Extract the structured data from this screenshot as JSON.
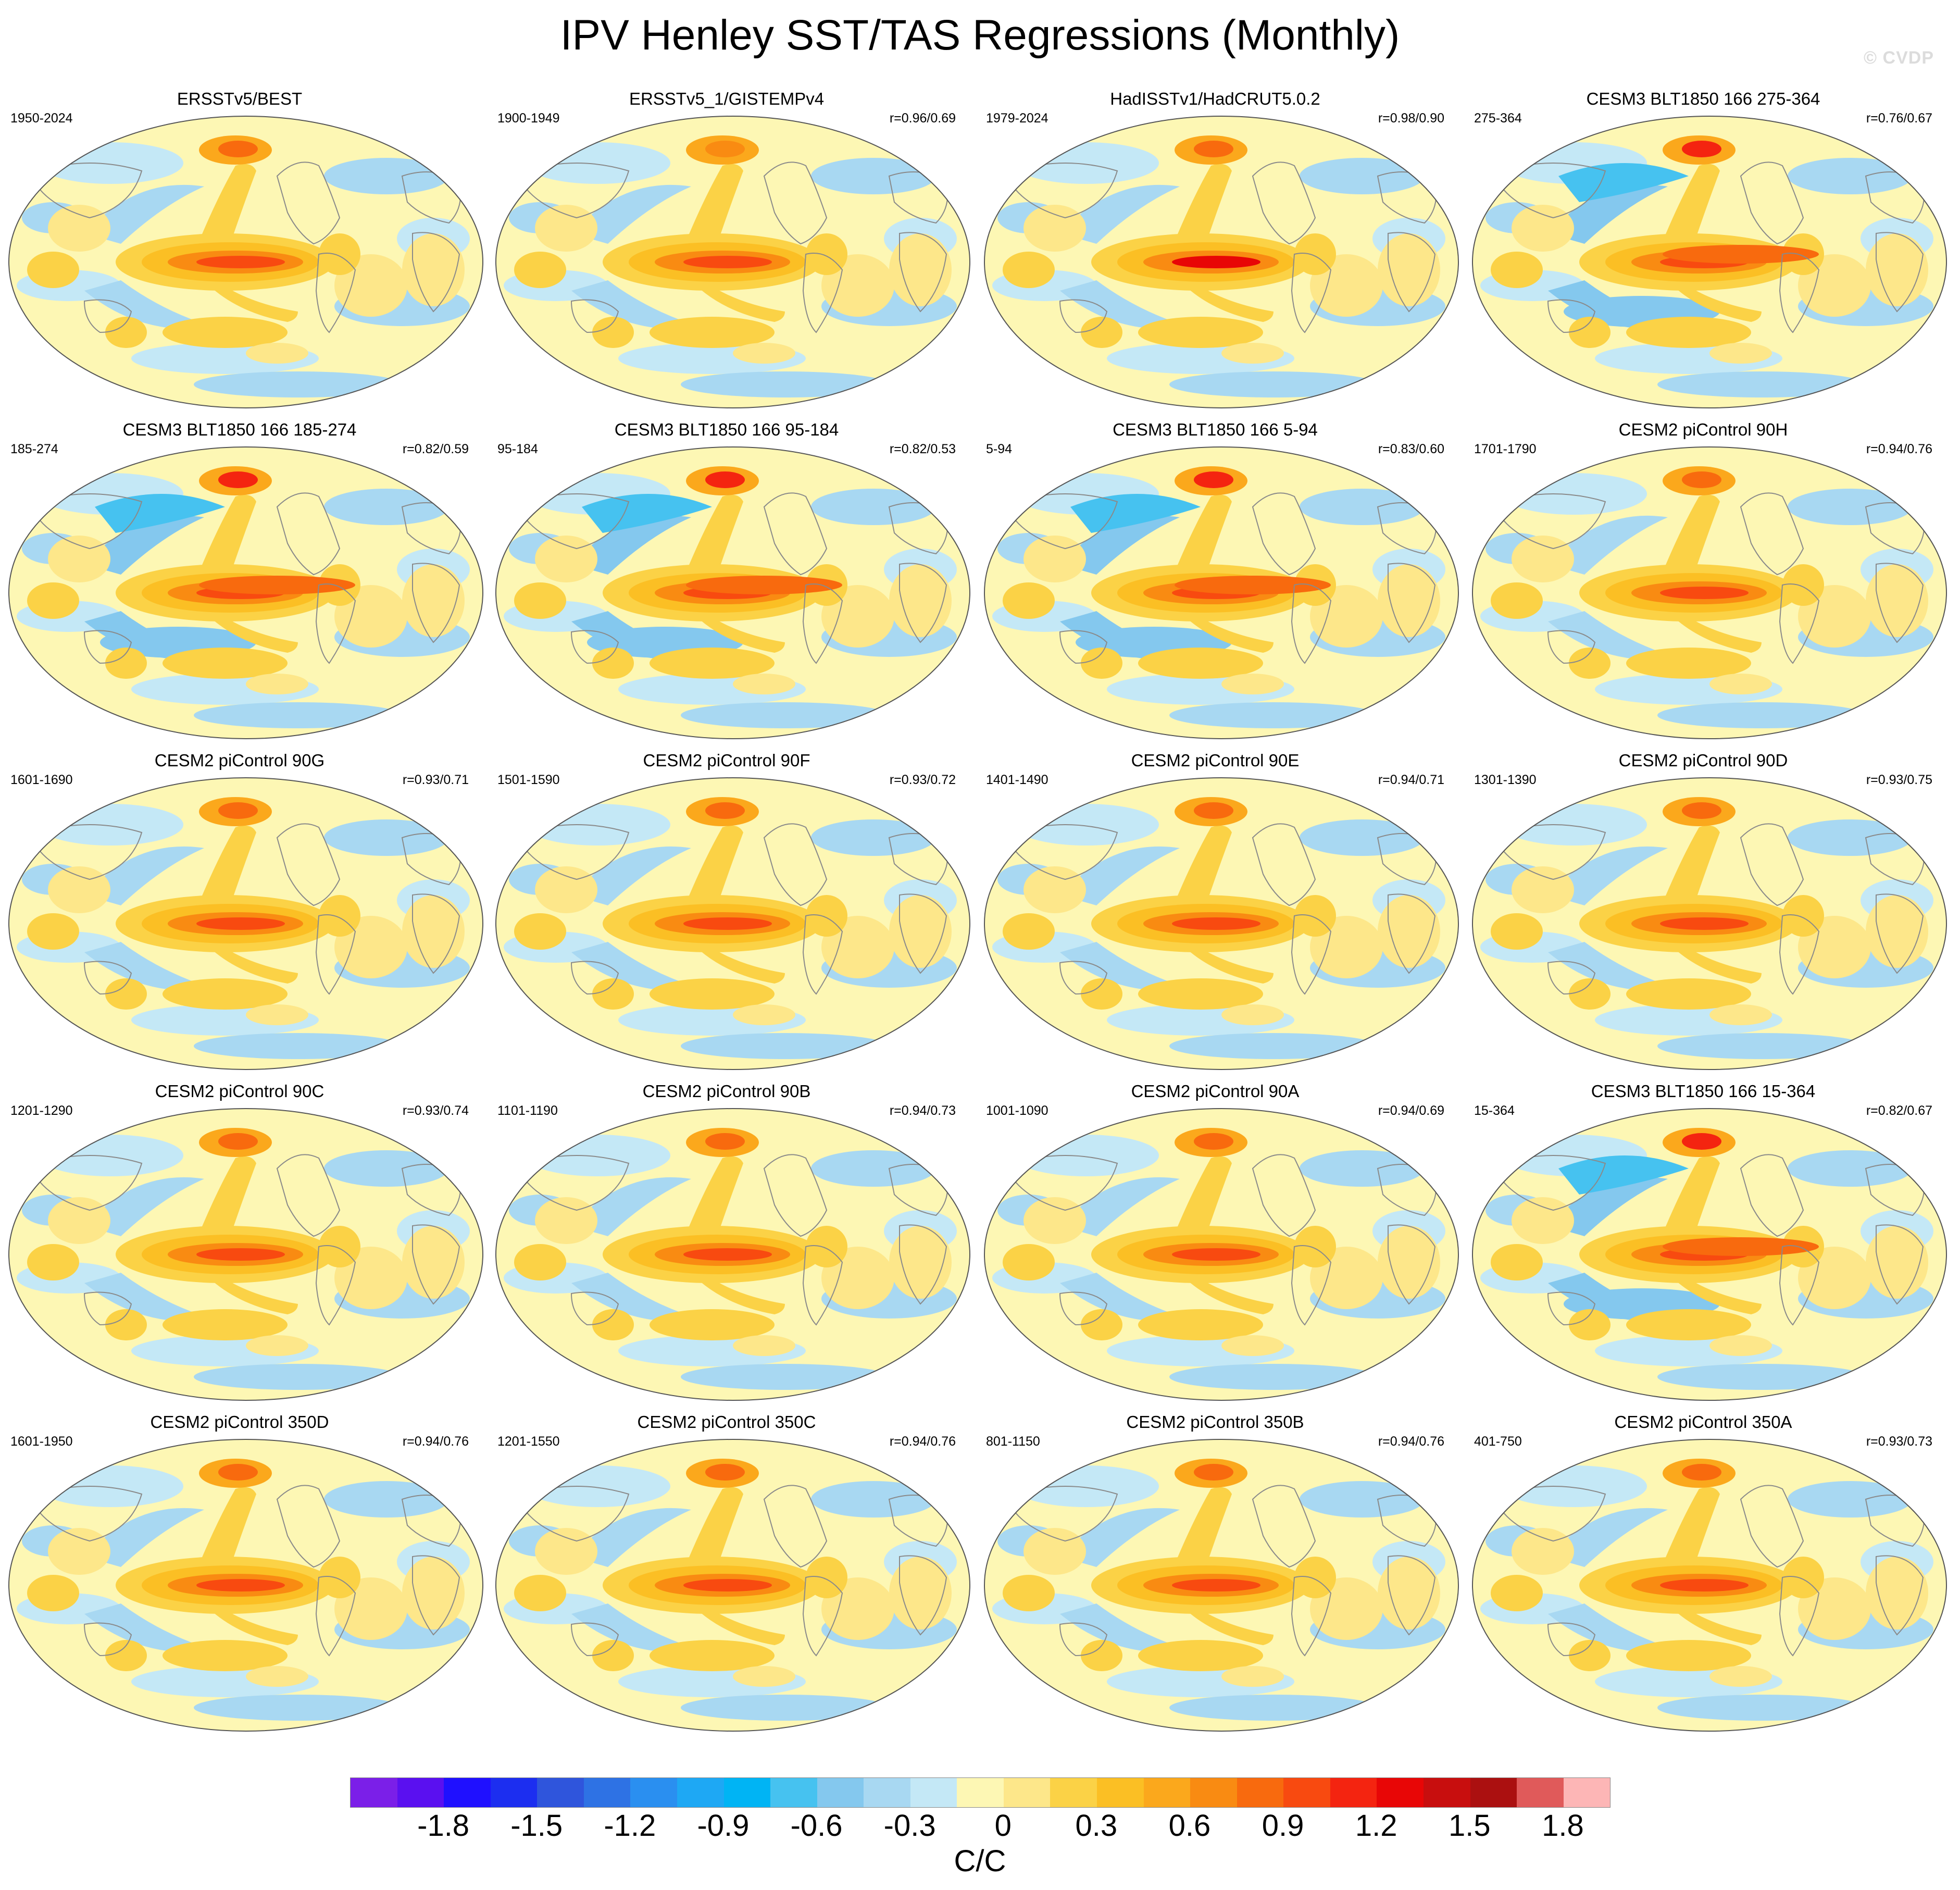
{
  "title": "IPV Henley SST/TAS Regressions (Monthly)",
  "watermark": "© CVDP",
  "colorbar": {
    "unit": "C/C",
    "ticks": [
      "-1.8",
      "-1.5",
      "-1.2",
      "-0.9",
      "-0.6",
      "-0.3",
      "0",
      "0.3",
      "0.6",
      "0.9",
      "1.2",
      "1.5",
      "1.8"
    ],
    "colors": [
      "#7b1fe8",
      "#5a10f0",
      "#1f10ff",
      "#1c2ef0",
      "#2f55dc",
      "#2e72e4",
      "#2a8ff0",
      "#1ea8f4",
      "#00b4f4",
      "#46c2f0",
      "#84c8ee",
      "#a8d8f2",
      "#c4e8f6",
      "#fdf7b4",
      "#fde78a",
      "#fbd246",
      "#fbbf24",
      "#fba81c",
      "#f98b12",
      "#f86a0e",
      "#f84a10",
      "#f42410",
      "#e80606",
      "#c80e0e",
      "#ab1010",
      "#e05a5a",
      "#fdb6b6"
    ]
  },
  "panels": [
    {
      "title": "ERSSTv5/BEST",
      "years": "1950-2024",
      "corr": "",
      "style": "obs"
    },
    {
      "title": "ERSSTv5_1/GISTEMPv4",
      "years": "1900-1949",
      "corr": "r=0.96/0.69",
      "style": "obs2"
    },
    {
      "title": "HadISSTv1/HadCRUT5.0.2",
      "years": "1979-2024",
      "corr": "r=0.98/0.90",
      "style": "obs3"
    },
    {
      "title": "CESM3 BLT1850 166 275-364",
      "years": "275-364",
      "corr": "r=0.76/0.67",
      "style": "cesm3"
    },
    {
      "title": "CESM3 BLT1850 166 185-274",
      "years": "185-274",
      "corr": "r=0.82/0.59",
      "style": "cesm3"
    },
    {
      "title": "CESM3 BLT1850 166 95-184",
      "years": "95-184",
      "corr": "r=0.82/0.53",
      "style": "cesm3"
    },
    {
      "title": "CESM3 BLT1850 166 5-94",
      "years": "5-94",
      "corr": "r=0.83/0.60",
      "style": "cesm3"
    },
    {
      "title": "CESM2 piControl 90H",
      "years": "1701-1790",
      "corr": "r=0.94/0.76",
      "style": "cesm2"
    },
    {
      "title": "CESM2 piControl 90G",
      "years": "1601-1690",
      "corr": "r=0.93/0.71",
      "style": "cesm2"
    },
    {
      "title": "CESM2 piControl 90F",
      "years": "1501-1590",
      "corr": "r=0.93/0.72",
      "style": "cesm2"
    },
    {
      "title": "CESM2 piControl 90E",
      "years": "1401-1490",
      "corr": "r=0.94/0.71",
      "style": "cesm2"
    },
    {
      "title": "CESM2 piControl 90D",
      "years": "1301-1390",
      "corr": "r=0.93/0.75",
      "style": "cesm2"
    },
    {
      "title": "CESM2 piControl 90C",
      "years": "1201-1290",
      "corr": "r=0.93/0.74",
      "style": "cesm2"
    },
    {
      "title": "CESM2 piControl 90B",
      "years": "1101-1190",
      "corr": "r=0.94/0.73",
      "style": "cesm2"
    },
    {
      "title": "CESM2 piControl 90A",
      "years": "1001-1090",
      "corr": "r=0.94/0.69",
      "style": "cesm2"
    },
    {
      "title": "CESM3 BLT1850 166 15-364",
      "years": "15-364",
      "corr": "r=0.82/0.67",
      "style": "cesm3"
    },
    {
      "title": "CESM2 piControl 350D",
      "years": "1601-1950",
      "corr": "r=0.94/0.76",
      "style": "cesm2"
    },
    {
      "title": "CESM2 piControl 350C",
      "years": "1201-1550",
      "corr": "r=0.94/0.76",
      "style": "cesm2"
    },
    {
      "title": "CESM2 piControl 350B",
      "years": "801-1150",
      "corr": "r=0.94/0.76",
      "style": "cesm2"
    },
    {
      "title": "CESM2 piControl 350A",
      "years": "401-750",
      "corr": "r=0.93/0.73",
      "style": "cesm2"
    }
  ]
}
